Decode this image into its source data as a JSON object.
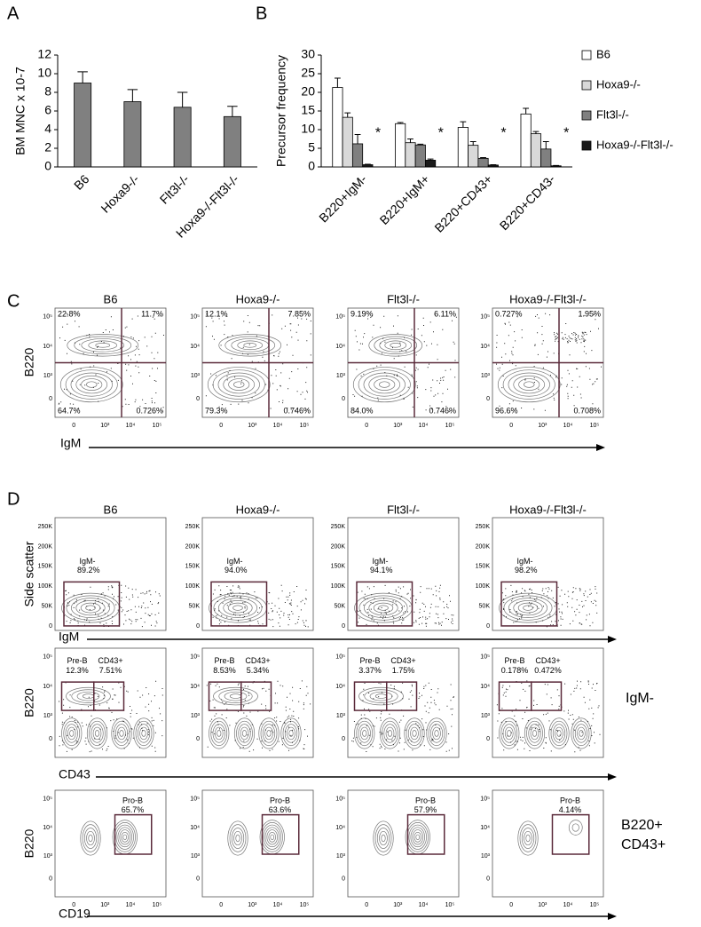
{
  "chart_data": [
    {
      "type": "bar",
      "label": "A",
      "y_label": "BM MNC x 10-7",
      "categories": [
        "B6",
        "Hoxa9-/-",
        "Flt3l-/-",
        "Hoxa9-/-Flt3l-/-"
      ],
      "values": [
        9.0,
        7.0,
        6.4,
        5.4
      ],
      "errors": [
        1.2,
        1.3,
        1.6,
        1.1
      ],
      "color": "#808080",
      "ylim": [
        0,
        12
      ],
      "yticks": [
        0,
        2,
        4,
        6,
        8,
        10,
        12
      ]
    },
    {
      "type": "bar",
      "label": "B",
      "y_label": "Precursor frequency",
      "categories": [
        "B220+IgM-",
        "B220+IgM+",
        "B220+CD43+",
        "B220+CD43-"
      ],
      "series": [
        {
          "name": "B6",
          "color": "#ffffff",
          "values": [
            21.3,
            11.6,
            10.6,
            14.2
          ],
          "errors": [
            2.5,
            0.3,
            1.5,
            1.5
          ]
        },
        {
          "name": "Hoxa9-/-",
          "color": "#d9d9d9",
          "values": [
            13.3,
            6.5,
            5.8,
            8.9
          ],
          "errors": [
            1.2,
            1.0,
            1.0,
            0.6
          ]
        },
        {
          "name": "Flt3l-/-",
          "color": "#808080",
          "values": [
            6.2,
            5.9,
            2.3,
            4.8
          ],
          "errors": [
            2.5,
            0.2,
            0.2,
            2.0
          ]
        },
        {
          "name": "Hoxa9-/-Flt3l-/-",
          "color": "#1a1a1a",
          "values": [
            0.6,
            1.8,
            0.5,
            0.3
          ],
          "errors": [
            0.1,
            0.3,
            0.1,
            0.1
          ]
        }
      ],
      "annotations": [
        "*",
        "*",
        "*",
        "*"
      ],
      "ylim": [
        0,
        30
      ],
      "yticks": [
        0,
        5,
        10,
        15,
        20,
        25,
        30
      ]
    }
  ],
  "panel_c": {
    "label": "C",
    "y_label": "B220",
    "x_label": "IgM",
    "x_ticks": [
      "0",
      "10³",
      "10⁴",
      "10⁵"
    ],
    "y_ticks": [
      "0",
      "10³",
      "10⁴",
      "10⁵"
    ],
    "plots": [
      {
        "title": "B6",
        "upper_left": "22.8%",
        "upper_right": "11.7%",
        "lower_left": "64.7%",
        "lower_right": "0.726%"
      },
      {
        "title": "Hoxa9-/-",
        "upper_left": "12.1%",
        "upper_right": "7.85%",
        "lower_left": "79.3%",
        "lower_right": "0.746%"
      },
      {
        "title": "Flt3l-/-",
        "upper_left": "9.19%",
        "upper_right": "6.11%",
        "lower_left": "84.0%",
        "lower_right": "0.746%"
      },
      {
        "title": "Hoxa9-/-Flt3l-/-",
        "upper_left": "0.727%",
        "upper_right": "1.95%",
        "lower_left": "96.6%",
        "lower_right": "0.708%"
      }
    ]
  },
  "panel_d": {
    "label": "D",
    "columns": [
      "B6",
      "Hoxa9-/-",
      "Flt3l-/-",
      "Hoxa9-/-Flt3l-/-"
    ],
    "igm_row": {
      "y_label": "Side scatter",
      "x_label": "IgM",
      "y_ticks": [
        "0",
        "50K",
        "100K",
        "150K",
        "200K",
        "250K"
      ],
      "gates": [
        {
          "name": "IgM-",
          "value": "89.2%"
        },
        {
          "name": "IgM-",
          "value": "94.0%"
        },
        {
          "name": "IgM-",
          "value": "94.1%"
        },
        {
          "name": "IgM-",
          "value": "98.2%"
        }
      ]
    },
    "cd43_row": {
      "y_label": "B220",
      "x_label": "CD43",
      "side_label": "IgM-",
      "y_ticks": [
        "0",
        "10³",
        "10⁴",
        "10⁵"
      ],
      "gates": [
        {
          "pre_b": "Pre-B",
          "pre_b_value": "12.3%",
          "cd43": "CD43+",
          "cd43_value": "7.51%"
        },
        {
          "pre_b": "Pre-B",
          "pre_b_value": "8.53%",
          "cd43": "CD43+",
          "cd43_value": "5.34%"
        },
        {
          "pre_b": "Pre-B",
          "pre_b_value": "3.37%",
          "cd43": "CD43+",
          "cd43_value": "1.75%"
        },
        {
          "pre_b": "Pre-B",
          "pre_b_value": "0.178%",
          "cd43": "CD43+",
          "cd43_value": "0.472%"
        }
      ]
    },
    "cd19_row": {
      "y_label": "B220",
      "x_label": "CD19",
      "side_label": [
        "B220+",
        "CD43+"
      ],
      "y_ticks": [
        "0",
        "10³",
        "10⁴",
        "10⁵"
      ],
      "x_ticks": [
        "0",
        "10³",
        "10⁴",
        "10⁵"
      ],
      "gates": [
        {
          "name": "Pro-B",
          "value": "65.7%"
        },
        {
          "name": "Pro-B",
          "value": "63.6%"
        },
        {
          "name": "Pro-B",
          "value": "57.9%"
        },
        {
          "name": "Pro-B",
          "value": "4.14%"
        }
      ]
    }
  }
}
